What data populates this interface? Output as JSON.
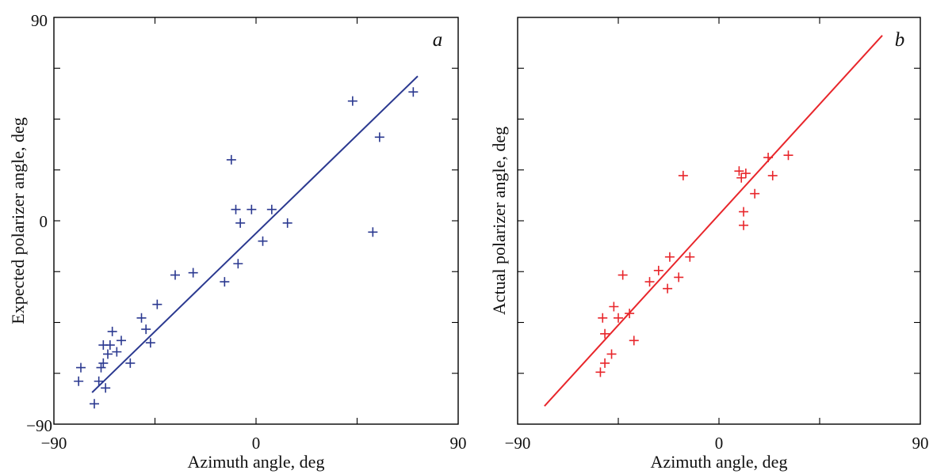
{
  "chart_data": [
    {
      "type": "scatter",
      "panel_label": "a",
      "xlabel": "Azimuth angle, deg",
      "ylabel": "Expected polarizer angle, deg",
      "xlim": [
        -90,
        90
      ],
      "ylim": [
        -90,
        90
      ],
      "x_tick_labels": [
        "−90",
        "0",
        "90"
      ],
      "y_tick_labels": [
        "90",
        "0",
        "−90"
      ],
      "marker_color": "#2b3990",
      "line_color": "#2b3990",
      "fit_line": {
        "x": [
          -73,
          72
        ],
        "y": [
          -76,
          64
        ]
      },
      "points": [
        {
          "x": -78,
          "y": -65
        },
        {
          "x": -79,
          "y": -71
        },
        {
          "x": -70,
          "y": -71
        },
        {
          "x": -69,
          "y": -65
        },
        {
          "x": -72,
          "y": -81
        },
        {
          "x": -67,
          "y": -74
        },
        {
          "x": -68,
          "y": -55
        },
        {
          "x": -68,
          "y": -63
        },
        {
          "x": -66,
          "y": -59
        },
        {
          "x": -65,
          "y": -55
        },
        {
          "x": -64,
          "y": -49
        },
        {
          "x": -62,
          "y": -58
        },
        {
          "x": -60,
          "y": -53
        },
        {
          "x": -56,
          "y": -63
        },
        {
          "x": -51,
          "y": -43
        },
        {
          "x": -49,
          "y": -48
        },
        {
          "x": -47,
          "y": -54
        },
        {
          "x": -44,
          "y": -37
        },
        {
          "x": -36,
          "y": -24
        },
        {
          "x": -28,
          "y": -23
        },
        {
          "x": -14,
          "y": -27
        },
        {
          "x": -11,
          "y": 27
        },
        {
          "x": -9,
          "y": 5
        },
        {
          "x": -8,
          "y": -19
        },
        {
          "x": -7,
          "y": -1
        },
        {
          "x": -2,
          "y": 5
        },
        {
          "x": 3,
          "y": -9
        },
        {
          "x": 7,
          "y": 5
        },
        {
          "x": 14,
          "y": -1
        },
        {
          "x": 43,
          "y": 53
        },
        {
          "x": 52,
          "y": -5
        },
        {
          "x": 55,
          "y": 37
        },
        {
          "x": 70,
          "y": 57
        }
      ]
    },
    {
      "type": "scatter",
      "panel_label": "b",
      "xlabel": "Azimuth angle, deg",
      "ylabel": "Actual polarizer angle, deg",
      "xlim": [
        -90,
        90
      ],
      "ylim": [
        -90,
        90
      ],
      "x_tick_labels": [
        "−90",
        "0",
        "90"
      ],
      "y_tick_labels": [],
      "marker_color": "#e8262b",
      "line_color": "#e8262b",
      "fit_line": {
        "x": [
          -78,
          73
        ],
        "y": [
          -82,
          82
        ]
      },
      "points": [
        {
          "x": -53,
          "y": -67
        },
        {
          "x": -51,
          "y": -63
        },
        {
          "x": -48,
          "y": -59
        },
        {
          "x": -51,
          "y": -50
        },
        {
          "x": -52,
          "y": -43
        },
        {
          "x": -47,
          "y": -38
        },
        {
          "x": -45,
          "y": -43
        },
        {
          "x": -43,
          "y": -24
        },
        {
          "x": -40,
          "y": -41
        },
        {
          "x": -38,
          "y": -53
        },
        {
          "x": -31,
          "y": -27
        },
        {
          "x": -27,
          "y": -22
        },
        {
          "x": -23,
          "y": -30
        },
        {
          "x": -22,
          "y": -16
        },
        {
          "x": -18,
          "y": -25
        },
        {
          "x": -13,
          "y": -16
        },
        {
          "x": -16,
          "y": 20
        },
        {
          "x": 9,
          "y": 22
        },
        {
          "x": 10,
          "y": 19
        },
        {
          "x": 11,
          "y": 4
        },
        {
          "x": 11,
          "y": -2
        },
        {
          "x": 12,
          "y": 21
        },
        {
          "x": 16,
          "y": 12
        },
        {
          "x": 22,
          "y": 28
        },
        {
          "x": 24,
          "y": 20
        },
        {
          "x": 31,
          "y": 29
        }
      ]
    }
  ]
}
